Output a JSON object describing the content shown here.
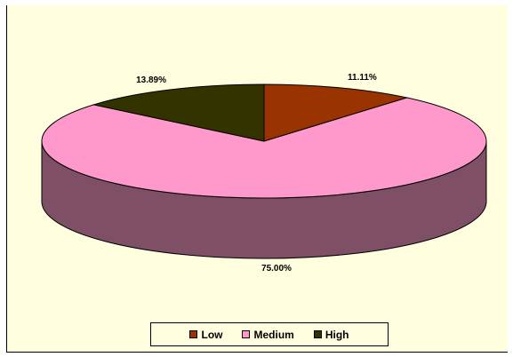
{
  "chart_data": {
    "type": "pie",
    "three_d": true,
    "categories": [
      "Low",
      "Medium",
      "High"
    ],
    "values": [
      11.11,
      75.0,
      13.89
    ],
    "labels": [
      "11.11%",
      "75.00%",
      "13.89%"
    ],
    "colors": {
      "Low": "#993300",
      "Medium": "#ff99cc",
      "High": "#333300",
      "side": "#7f4f65",
      "background": "#ffffe0"
    },
    "legend": {
      "position": "bottom",
      "items": [
        {
          "label": "Low",
          "color": "#993300"
        },
        {
          "label": "Medium",
          "color": "#ff99cc"
        },
        {
          "label": "High",
          "color": "#333300"
        }
      ]
    }
  }
}
